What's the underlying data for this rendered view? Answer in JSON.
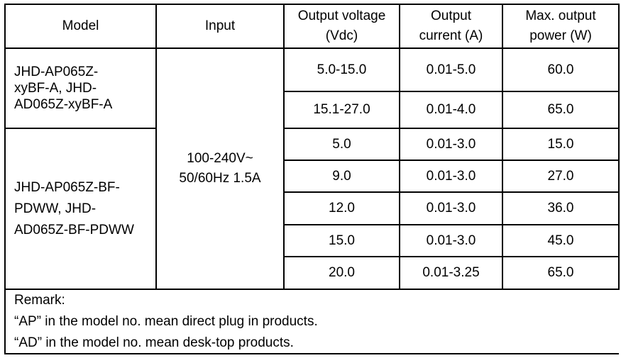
{
  "headers": [
    "Model",
    "Input",
    "Output voltage (Vdc)",
    "Output current (A)",
    "Max. output power (W)"
  ],
  "groups": [
    {
      "model": "JHD-AP065Z-xyBF-A, JHD-AD065Z-xyBF-A",
      "rows": [
        [
          "5.0-15.0",
          "0.01-5.0",
          "60.0"
        ],
        [
          "15.1-27.0",
          "0.01-4.0",
          "65.0"
        ]
      ]
    },
    {
      "model": "JHD-AP065Z-BF-PDWW, JHD-AD065Z-BF-PDWW",
      "rows": [
        [
          "5.0",
          "0.01-3.0",
          "15.0"
        ],
        [
          "9.0",
          "0.01-3.0",
          "27.0"
        ],
        [
          "12.0",
          "0.01-3.0",
          "36.0"
        ],
        [
          "15.0",
          "0.01-3.0",
          "45.0"
        ],
        [
          "20.0",
          "0.01-3.25",
          "65.0"
        ]
      ]
    }
  ],
  "input": "100-240V~ 50/60Hz 1.5A",
  "remark": {
    "title": "Remark:",
    "lines": [
      "“AP” in the model no. mean direct plug in products.",
      "“AD” in the model no. mean desk-top products."
    ]
  }
}
